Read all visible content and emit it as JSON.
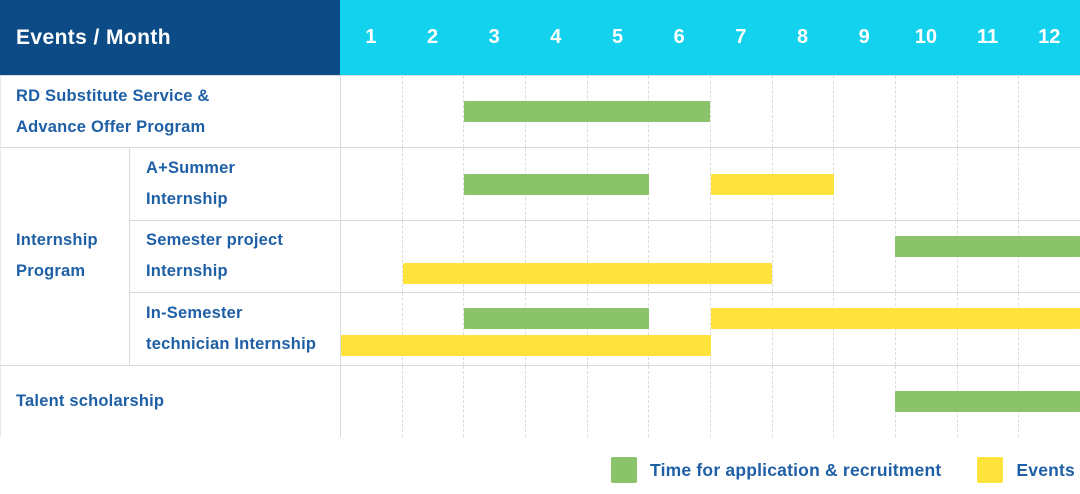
{
  "colors": {
    "navy": "#0C4B85",
    "cyan": "#12D2EE",
    "green": "#8BC36A",
    "yellow": "#FFE33D",
    "label_blue": "#1E5FA6"
  },
  "chart_data": {
    "type": "gantt",
    "title": "Events / Month",
    "months": [
      "1",
      "2",
      "3",
      "4",
      "5",
      "6",
      "7",
      "8",
      "9",
      "10",
      "11",
      "12"
    ],
    "x_axis_label": "Month",
    "x_range": [
      1,
      12
    ],
    "rows": [
      {
        "label": "RD Substitute Service & Advance Offer Program",
        "label_lines": [
          "RD Substitute Service &",
          "Advance Offer Program"
        ],
        "group": "",
        "bars": [
          {
            "series": "Time for application & recruitment",
            "color": "green",
            "start_month": 3,
            "end_month": 6,
            "lane": "center"
          }
        ]
      },
      {
        "label": "A+Summer Internship",
        "label_lines": [
          "A+Summer",
          "Internship"
        ],
        "group": "Internship Program",
        "bars": [
          {
            "series": "Time for application & recruitment",
            "color": "green",
            "start_month": 3,
            "end_month": 5,
            "lane": "center"
          },
          {
            "series": "Events",
            "color": "yellow",
            "start_month": 7,
            "end_month": 8,
            "lane": "center"
          }
        ]
      },
      {
        "label": "Semester project Internship",
        "label_lines": [
          "Semester project",
          "Internship"
        ],
        "group": "Internship Program",
        "bars": [
          {
            "series": "Time for application & recruitment",
            "color": "green",
            "start_month": 10,
            "end_month": 12,
            "lane": "top"
          },
          {
            "series": "Events",
            "color": "yellow",
            "start_month": 2,
            "end_month": 7,
            "lane": "bottom"
          }
        ]
      },
      {
        "label": "In-Semester technician Internship",
        "label_lines": [
          "In-Semester",
          "technician Internship"
        ],
        "group": "Internship Program",
        "bars": [
          {
            "series": "Time for application & recruitment",
            "color": "green",
            "start_month": 3,
            "end_month": 5,
            "lane": "top"
          },
          {
            "series": "Events",
            "color": "yellow",
            "start_month": 7,
            "end_month": 12,
            "lane": "top"
          },
          {
            "series": "Events",
            "color": "yellow",
            "start_month": 1,
            "end_month": 6,
            "lane": "bottom"
          }
        ]
      },
      {
        "label": "Talent scholarship",
        "label_lines": [
          "Talent scholarship"
        ],
        "group": "",
        "bars": [
          {
            "series": "Time for application & recruitment",
            "color": "green",
            "start_month": 10,
            "end_month": 12,
            "lane": "center"
          }
        ]
      }
    ],
    "group_label": "Internship Program",
    "group_label_lines": [
      "Internship",
      "Program"
    ],
    "legend": [
      {
        "color": "green",
        "label": "Time for application & recruitment"
      },
      {
        "color": "yellow",
        "label": "Events"
      }
    ],
    "legend_position": "bottom-right"
  }
}
